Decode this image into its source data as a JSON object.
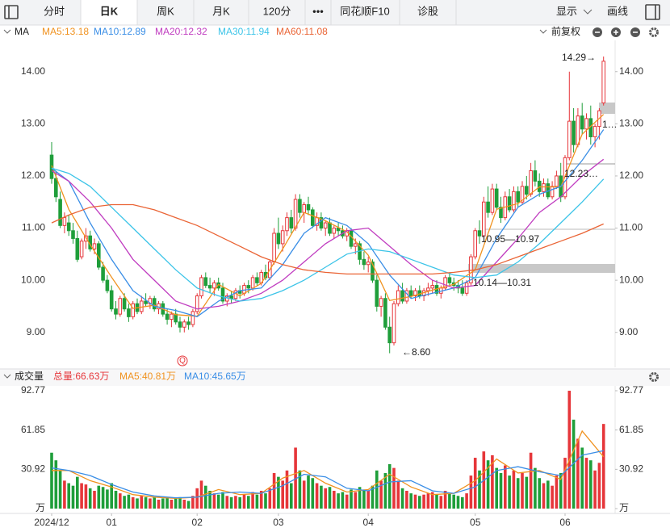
{
  "toolbar": {
    "tabs": [
      "分时",
      "日K",
      "周K",
      "月K",
      "120分",
      "•••",
      "同花顺F10",
      "诊股"
    ],
    "display": "显示",
    "draw": "画线"
  },
  "indicator_bar": {
    "label": "MA",
    "adjust": "前复权"
  },
  "chart_data": {
    "type": "candlestick",
    "categories": [
      "2024/12",
      null,
      null,
      null,
      null,
      null,
      null,
      null,
      null,
      null,
      null,
      null,
      null,
      null,
      "01",
      null,
      null,
      null,
      null,
      null,
      null,
      null,
      null,
      null,
      null,
      null,
      null,
      null,
      null,
      null,
      null,
      null,
      null,
      null,
      "02",
      null,
      null,
      null,
      null,
      null,
      null,
      null,
      null,
      null,
      null,
      null,
      null,
      null,
      null,
      null,
      null,
      null,
      null,
      "03",
      null,
      null,
      null,
      null,
      null,
      null,
      null,
      null,
      null,
      null,
      null,
      null,
      null,
      null,
      null,
      null,
      null,
      null,
      null,
      null,
      "04",
      null,
      null,
      null,
      null,
      null,
      null,
      null,
      null,
      null,
      null,
      null,
      null,
      null,
      null,
      null,
      null,
      null,
      null,
      null,
      null,
      null,
      null,
      null,
      null,
      "05",
      null,
      null,
      null,
      null,
      null,
      null,
      null,
      null,
      null,
      null,
      null,
      null,
      null,
      null,
      null,
      null,
      null,
      null,
      null,
      null,
      "06",
      null,
      null,
      null,
      null,
      null,
      null,
      null,
      null,
      null
    ],
    "open": [
      12.4,
      11.95,
      11.55,
      11.05,
      11.1,
      10.95,
      10.8,
      10.45,
      10.75,
      10.85,
      10.6,
      10.7,
      10.25,
      10.0,
      9.8,
      9.45,
      9.35,
      9.65,
      9.45,
      9.3,
      9.55,
      9.4,
      9.6,
      9.55,
      9.65,
      9.45,
      9.55,
      9.35,
      9.25,
      9.35,
      9.2,
      9.1,
      9.2,
      9.15,
      9.4,
      9.7,
      10.05,
      9.9,
      9.85,
      9.95,
      9.85,
      9.6,
      9.7,
      9.65,
      9.8,
      9.75,
      9.9,
      9.85,
      10.05,
      9.95,
      10.15,
      10.05,
      10.35,
      10.9,
      10.7,
      10.95,
      11.2,
      11.0,
      11.55,
      11.3,
      11.45,
      11.35,
      11.05,
      11.2,
      11.0,
      11.1,
      10.9,
      11.0,
      10.95,
      10.85,
      10.95,
      10.65,
      10.7,
      10.4,
      10.3,
      10.35,
      10.0,
      9.5,
      9.65,
      9.1,
      8.8,
      9.55,
      9.8,
      9.6,
      9.8,
      9.7,
      9.8,
      9.7,
      9.8,
      9.85,
      9.9,
      9.75,
      9.85,
      10.05,
      9.95,
      9.9,
      9.85,
      9.75,
      9.95,
      10.45,
      10.95,
      10.85,
      11.5,
      11.3,
      11.75,
      11.4,
      11.2,
      11.6,
      11.35,
      11.7,
      11.5,
      11.8,
      11.65,
      12.1,
      11.9,
      11.7,
      11.85,
      11.6,
      11.8,
      12.0,
      11.6,
      12.35,
      13.05,
      12.6,
      13.15,
      12.9,
      13.1,
      12.75,
      12.95,
      13.4
    ],
    "high": [
      12.65,
      12.1,
      11.7,
      11.3,
      11.25,
      11.1,
      10.95,
      10.8,
      11.0,
      10.95,
      10.8,
      10.75,
      10.35,
      10.1,
      9.9,
      9.6,
      9.7,
      9.75,
      9.55,
      9.6,
      9.65,
      9.7,
      9.75,
      9.7,
      9.7,
      9.6,
      9.6,
      9.45,
      9.4,
      9.45,
      9.3,
      9.25,
      9.3,
      9.45,
      9.75,
      10.1,
      10.15,
      10.05,
      10.0,
      10.05,
      9.95,
      9.75,
      9.8,
      9.85,
      9.9,
      9.95,
      10.0,
      10.1,
      10.15,
      10.2,
      10.3,
      10.4,
      11.0,
      11.2,
      11.05,
      11.3,
      11.35,
      11.65,
      11.65,
      11.5,
      11.6,
      11.4,
      11.3,
      11.3,
      11.15,
      11.2,
      11.05,
      11.1,
      11.05,
      11.0,
      11.0,
      10.8,
      10.75,
      10.55,
      10.45,
      10.4,
      10.1,
      9.7,
      9.75,
      9.3,
      9.6,
      9.9,
      9.95,
      9.85,
      9.9,
      9.85,
      9.9,
      9.85,
      9.95,
      10.0,
      10.0,
      9.9,
      10.1,
      10.15,
      10.05,
      10.0,
      10.0,
      10.0,
      10.5,
      11.0,
      11.15,
      11.6,
      11.8,
      11.85,
      11.85,
      11.6,
      11.7,
      11.75,
      11.8,
      11.8,
      11.9,
      12.0,
      12.25,
      12.3,
      12.05,
      11.95,
      11.95,
      11.9,
      12.1,
      12.25,
      12.4,
      14.0,
      13.3,
      13.3,
      13.4,
      13.2,
      13.35,
      13.0,
      13.3,
      14.29
    ],
    "low": [
      11.85,
      11.5,
      11.0,
      10.9,
      10.85,
      10.7,
      10.35,
      10.4,
      10.6,
      10.55,
      10.5,
      10.2,
      9.95,
      9.75,
      9.4,
      9.25,
      9.3,
      9.4,
      9.2,
      9.25,
      9.35,
      9.35,
      9.5,
      9.45,
      9.4,
      9.35,
      9.3,
      9.15,
      9.1,
      9.15,
      9.0,
      9.0,
      9.05,
      9.1,
      9.35,
      9.65,
      9.85,
      9.75,
      9.7,
      9.8,
      9.55,
      9.5,
      9.55,
      9.6,
      9.65,
      9.7,
      9.75,
      9.8,
      9.9,
      9.9,
      10.0,
      10.0,
      10.3,
      10.6,
      10.55,
      10.85,
      10.9,
      10.95,
      11.2,
      11.1,
      11.25,
      11.0,
      10.95,
      10.95,
      10.85,
      10.85,
      10.8,
      10.85,
      10.8,
      10.75,
      10.6,
      10.5,
      10.3,
      10.2,
      10.15,
      9.95,
      9.4,
      9.3,
      9.05,
      8.6,
      8.75,
      9.5,
      9.55,
      9.55,
      9.65,
      9.6,
      9.65,
      9.6,
      9.7,
      9.75,
      9.7,
      9.65,
      9.8,
      9.9,
      9.8,
      9.75,
      9.7,
      9.7,
      9.9,
      10.4,
      10.7,
      10.8,
      11.2,
      11.25,
      11.35,
      11.1,
      11.15,
      11.3,
      11.3,
      11.4,
      11.45,
      11.55,
      11.6,
      11.8,
      11.6,
      11.6,
      11.55,
      11.55,
      11.75,
      11.5,
      11.55,
      12.3,
      12.45,
      12.55,
      12.8,
      12.7,
      12.6,
      12.55,
      12.7,
      13.35
    ],
    "close": [
      11.95,
      11.6,
      11.05,
      11.2,
      10.95,
      10.8,
      10.4,
      10.75,
      10.85,
      10.6,
      10.7,
      10.25,
      10.0,
      9.8,
      9.45,
      9.35,
      9.65,
      9.45,
      9.3,
      9.55,
      9.4,
      9.6,
      9.55,
      9.65,
      9.45,
      9.55,
      9.35,
      9.25,
      9.35,
      9.2,
      9.1,
      9.2,
      9.15,
      9.4,
      9.7,
      10.05,
      9.9,
      9.85,
      9.95,
      9.85,
      9.6,
      9.7,
      9.65,
      9.8,
      9.75,
      9.9,
      9.85,
      10.05,
      9.95,
      10.15,
      10.05,
      10.35,
      10.9,
      10.7,
      10.95,
      11.2,
      11.0,
      11.55,
      11.3,
      11.45,
      11.35,
      11.05,
      11.2,
      11.0,
      11.1,
      10.9,
      11.0,
      10.95,
      10.85,
      10.95,
      10.65,
      10.7,
      10.4,
      10.3,
      10.35,
      10.0,
      9.5,
      9.65,
      9.1,
      8.8,
      9.55,
      9.8,
      9.6,
      9.8,
      9.7,
      9.8,
      9.7,
      9.8,
      9.85,
      9.9,
      9.75,
      9.85,
      10.05,
      9.95,
      9.9,
      9.85,
      9.75,
      9.95,
      10.45,
      10.95,
      10.85,
      11.5,
      11.3,
      11.75,
      11.4,
      11.2,
      11.6,
      11.35,
      11.7,
      11.5,
      11.8,
      11.65,
      12.1,
      11.9,
      11.7,
      11.85,
      11.6,
      11.8,
      12.0,
      11.6,
      12.35,
      13.05,
      12.6,
      13.15,
      12.9,
      13.1,
      12.75,
      12.95,
      13.25,
      14.2
    ],
    "up_color": "#e6363a",
    "down_color": "#1f9e3a",
    "ylim": [
      8.33,
      14.6
    ],
    "yticks": [
      {
        "value": 9,
        "label": "9.00"
      },
      {
        "value": 10,
        "label": "10.00"
      },
      {
        "value": 11,
        "label": "11.00"
      },
      {
        "value": 12,
        "label": "12.00"
      },
      {
        "value": 13,
        "label": "13.00"
      },
      {
        "value": 14,
        "label": "14.00"
      }
    ],
    "ma": {
      "x": [
        0,
        4,
        9,
        14,
        19,
        24,
        29,
        34,
        39,
        44,
        49,
        54,
        59,
        64,
        69,
        74,
        79,
        84,
        89,
        94,
        99,
        104,
        109,
        114,
        119,
        124,
        129
      ],
      "series": [
        {
          "name": "MA5:13.18",
          "color": "#f0921f",
          "values": [
            12.2,
            11.36,
            10.68,
            10.06,
            9.46,
            9.52,
            9.34,
            9.31,
            9.92,
            9.7,
            9.94,
            10.6,
            11.3,
            11.14,
            10.93,
            10.48,
            9.61,
            9.69,
            9.81,
            9.92,
            10.2,
            11.36,
            11.47,
            11.79,
            11.79,
            12.8,
            13.18
          ]
        },
        {
          "name": "MA10:12.89",
          "color": "#3a8ee6",
          "values": [
            12.15,
            11.9,
            11.1,
            10.4,
            9.8,
            9.5,
            9.42,
            9.3,
            9.6,
            9.8,
            9.85,
            10.3,
            10.9,
            11.2,
            11.05,
            10.7,
            10.1,
            9.65,
            9.75,
            9.85,
            10.05,
            10.8,
            11.4,
            11.65,
            11.8,
            12.3,
            12.89
          ]
        },
        {
          "name": "MA20:12.32",
          "color": "#c03cc0",
          "values": [
            12.1,
            11.9,
            11.5,
            11.0,
            10.4,
            10.0,
            9.6,
            9.45,
            9.5,
            9.6,
            9.75,
            10.0,
            10.35,
            10.7,
            10.95,
            11.0,
            10.65,
            10.3,
            10.0,
            9.85,
            9.9,
            10.35,
            10.8,
            11.3,
            11.6,
            12.0,
            12.32
          ]
        },
        {
          "name": "MA30:11.94",
          "color": "#3cc4e8",
          "values": [
            12.15,
            12.05,
            11.8,
            11.4,
            11.0,
            10.6,
            10.2,
            9.85,
            9.7,
            9.6,
            9.65,
            9.8,
            10.0,
            10.25,
            10.5,
            10.6,
            10.55,
            10.4,
            10.25,
            10.1,
            10.05,
            10.1,
            10.35,
            10.7,
            11.1,
            11.5,
            11.94
          ]
        },
        {
          "name": "MA60:11.08",
          "color": "#ea6435",
          "values": [
            11.1,
            11.25,
            11.4,
            11.45,
            11.45,
            11.35,
            11.2,
            11.05,
            10.85,
            10.65,
            10.45,
            10.3,
            10.2,
            10.15,
            10.12,
            10.12,
            10.12,
            10.12,
            10.12,
            10.15,
            10.2,
            10.3,
            10.45,
            10.6,
            10.75,
            10.9,
            11.08
          ]
        }
      ]
    },
    "annotations": [
      "14.29→",
      "1…",
      "12.23…",
      "10.95—10.97",
      "10.14—10.31",
      "←8.60"
    ],
    "marker": "Q",
    "volume": {
      "title": "成交量",
      "total": "总量:66.63万",
      "values": [
        44,
        38,
        30,
        22,
        20,
        18,
        25,
        20,
        19,
        16,
        14,
        18,
        17,
        15,
        20,
        14,
        12,
        10,
        11,
        9,
        8,
        10,
        9,
        8,
        9,
        7,
        8,
        9,
        7,
        8,
        9,
        7,
        6,
        10,
        16,
        22,
        18,
        14,
        12,
        11,
        13,
        10,
        9,
        10,
        9,
        11,
        10,
        13,
        11,
        14,
        12,
        16,
        28,
        25,
        22,
        30,
        20,
        48,
        30,
        22,
        26,
        24,
        20,
        18,
        16,
        17,
        14,
        12,
        13,
        11,
        15,
        13,
        17,
        15,
        14,
        18,
        30,
        22,
        28,
        35,
        32,
        22,
        16,
        14,
        12,
        11,
        10,
        11,
        12,
        13,
        11,
        10,
        14,
        12,
        11,
        10,
        9,
        12,
        26,
        40,
        30,
        45,
        38,
        42,
        32,
        28,
        34,
        26,
        30,
        24,
        28,
        25,
        44,
        32,
        24,
        20,
        22,
        18,
        26,
        28,
        40,
        92.77,
        70,
        55,
        48,
        40,
        38,
        30,
        36,
        66.63
      ],
      "ylim": [
        0,
        92.77
      ],
      "yticks": [
        {
          "value": 0,
          "label": "万"
        },
        30.92,
        61.85,
        92.77
      ],
      "ma": {
        "x": [
          0,
          4,
          9,
          14,
          19,
          24,
          29,
          34,
          39,
          44,
          49,
          54,
          59,
          64,
          69,
          74,
          79,
          84,
          89,
          94,
          99,
          104,
          109,
          114,
          119,
          124,
          129
        ],
        "series": [
          {
            "name": "MA5:40.81万",
            "color": "#f0921f",
            "values": [
              30,
              30,
              22,
              17,
              11,
              9,
              8,
              9,
              15,
              11,
              12,
              24,
              30,
              20,
              13,
              15,
              27,
              17,
              11,
              12,
              22,
              39,
              28,
              30,
              23,
              61,
              40.81
            ]
          },
          {
            "name": "MA10:45.65万",
            "color": "#3a8ee6",
            "values": [
              32,
              30,
              26,
              19,
              13,
              10,
              8.5,
              9,
              12,
              13,
              12,
              18,
              27,
              25,
              16,
              14,
              21,
              22,
              14,
              12,
              17,
              30,
              33,
              29,
              26,
              42,
              45.65
            ]
          }
        ]
      }
    }
  }
}
